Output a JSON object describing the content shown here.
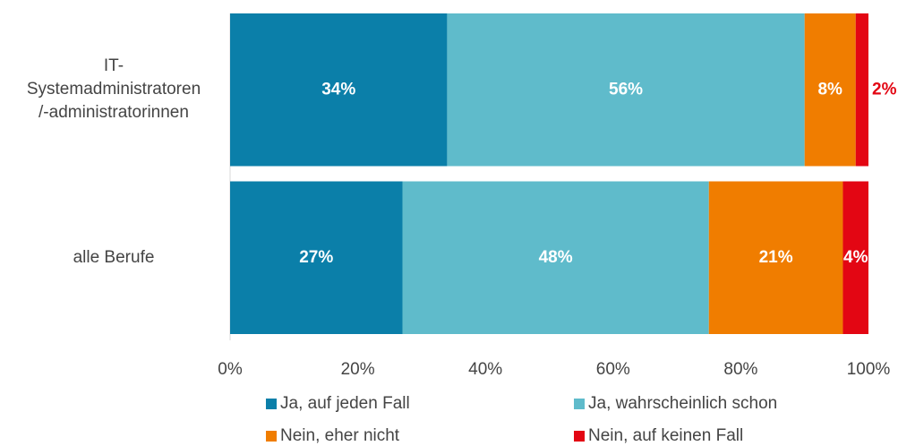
{
  "chart_data": {
    "type": "stacked-bar-horizontal",
    "categories": [
      "IT-\nSystemadministratoren\n/-administratorinnen",
      "alle Berufe"
    ],
    "series": [
      {
        "name": "Ja, auf jeden Fall",
        "color": "#0b7fa9",
        "values": [
          34,
          27
        ],
        "value_labels": [
          "34%",
          "27%"
        ]
      },
      {
        "name": "Ja, wahrscheinlich schon",
        "color": "#5fbbcb",
        "values": [
          56,
          48
        ],
        "value_labels": [
          "56%",
          "48%"
        ]
      },
      {
        "name": "Nein, eher nicht",
        "color": "#f07d00",
        "values": [
          8,
          21
        ],
        "value_labels": [
          "8%",
          "21%"
        ]
      },
      {
        "name": "Nein, auf keinen Fall",
        "color": "#e30613",
        "values": [
          2,
          4
        ],
        "value_labels": [
          "2%",
          "4%"
        ]
      }
    ],
    "xlim": [
      0,
      100
    ],
    "xticks": [
      {
        "value": 0,
        "label": "0%"
      },
      {
        "value": 20,
        "label": "20%"
      },
      {
        "value": 40,
        "label": "40%"
      },
      {
        "value": 60,
        "label": "60%"
      },
      {
        "value": 80,
        "label": "80%"
      },
      {
        "value": 100,
        "label": "100%"
      }
    ],
    "legend": "bottom"
  }
}
